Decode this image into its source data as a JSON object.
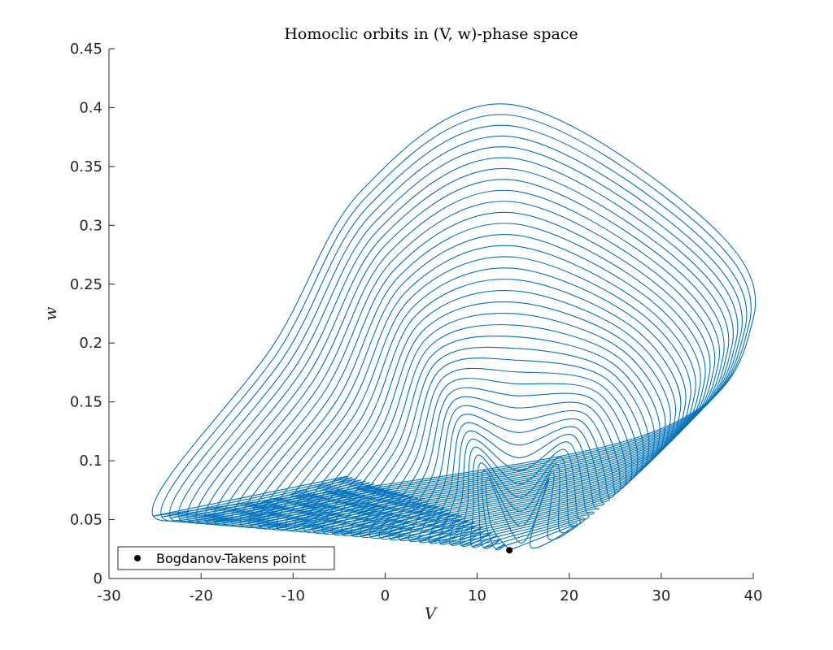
{
  "chart_data": {
    "type": "line",
    "title": "Homoclic orbits in (V, w)-phase space",
    "xlabel": "V",
    "ylabel": "w",
    "xlim": [
      -30,
      40
    ],
    "ylim": [
      0,
      0.45
    ],
    "xticks": [
      -30,
      -20,
      -10,
      0,
      10,
      20,
      30,
      40
    ],
    "xtick_labels": [
      "-30",
      "-20",
      "-10",
      "0",
      "10",
      "20",
      "30",
      "40"
    ],
    "yticks": [
      0,
      0.05,
      0.1,
      0.15,
      0.2,
      0.25,
      0.3,
      0.35,
      0.4,
      0.45
    ],
    "ytick_labels": [
      "0",
      "0.05",
      "0.1",
      "0.15",
      "0.2",
      "0.25",
      "0.3",
      "0.35",
      "0.4",
      "0.45"
    ],
    "grid": false,
    "legend_position": "bottom-left",
    "line_color": "#0072BD",
    "marker_color": "#000000",
    "family": {
      "orbit_count": 38,
      "saddle_start": [
        13.5,
        0.024
      ],
      "saddle_end": [
        -25.2,
        0.053
      ],
      "peak_start": [
        14.8,
        0.03
      ],
      "peak_end": [
        13.2,
        0.403
      ],
      "right_extent_start": 15.8,
      "right_extent_end": 40.0,
      "bottom_w_start": 0.022,
      "bottom_w_end": 0.087
    },
    "points": [
      {
        "name": "Bogdanov-Takens point",
        "V": 13.5,
        "w": 0.024
      }
    ],
    "legend": [
      {
        "label": "Bogdanov-Takens point",
        "marker": "dot"
      }
    ]
  }
}
